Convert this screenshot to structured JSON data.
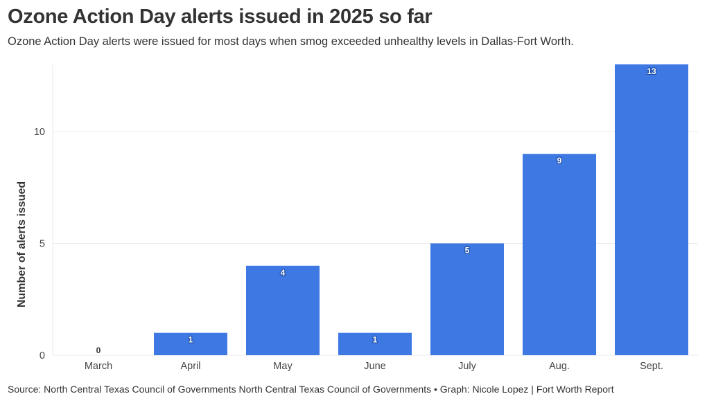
{
  "title": "Ozone Action Day alerts issued in 2025 so far",
  "subtitle": "Ozone Action Day alerts were issued for most days when smog exceeded unhealthy levels in Dallas-Fort Worth.",
  "source": "Source: North Central Texas Council of Governments North Central Texas Council of Governments • Graph: Nicole Lopez | Fort Worth Report",
  "colors": {
    "bar": "#3d78e3",
    "grid": "#ebebeb",
    "text": "#333333"
  },
  "chart_data": {
    "type": "bar",
    "title": "Ozone Action Day alerts issued in 2025 so far",
    "xlabel": "",
    "ylabel": "Number of alerts issued",
    "categories": [
      "March",
      "April",
      "May",
      "June",
      "July",
      "Aug.",
      "Sept."
    ],
    "values": [
      0,
      1,
      4,
      1,
      5,
      9,
      13
    ],
    "data_labels": [
      "0",
      "1",
      "4",
      "1",
      "5",
      "9",
      "13"
    ],
    "ylim": [
      0,
      13
    ],
    "yticks": [
      0,
      5,
      10
    ],
    "ytick_labels": [
      "0",
      "5",
      "10"
    ],
    "grid": true,
    "legend": "none"
  }
}
